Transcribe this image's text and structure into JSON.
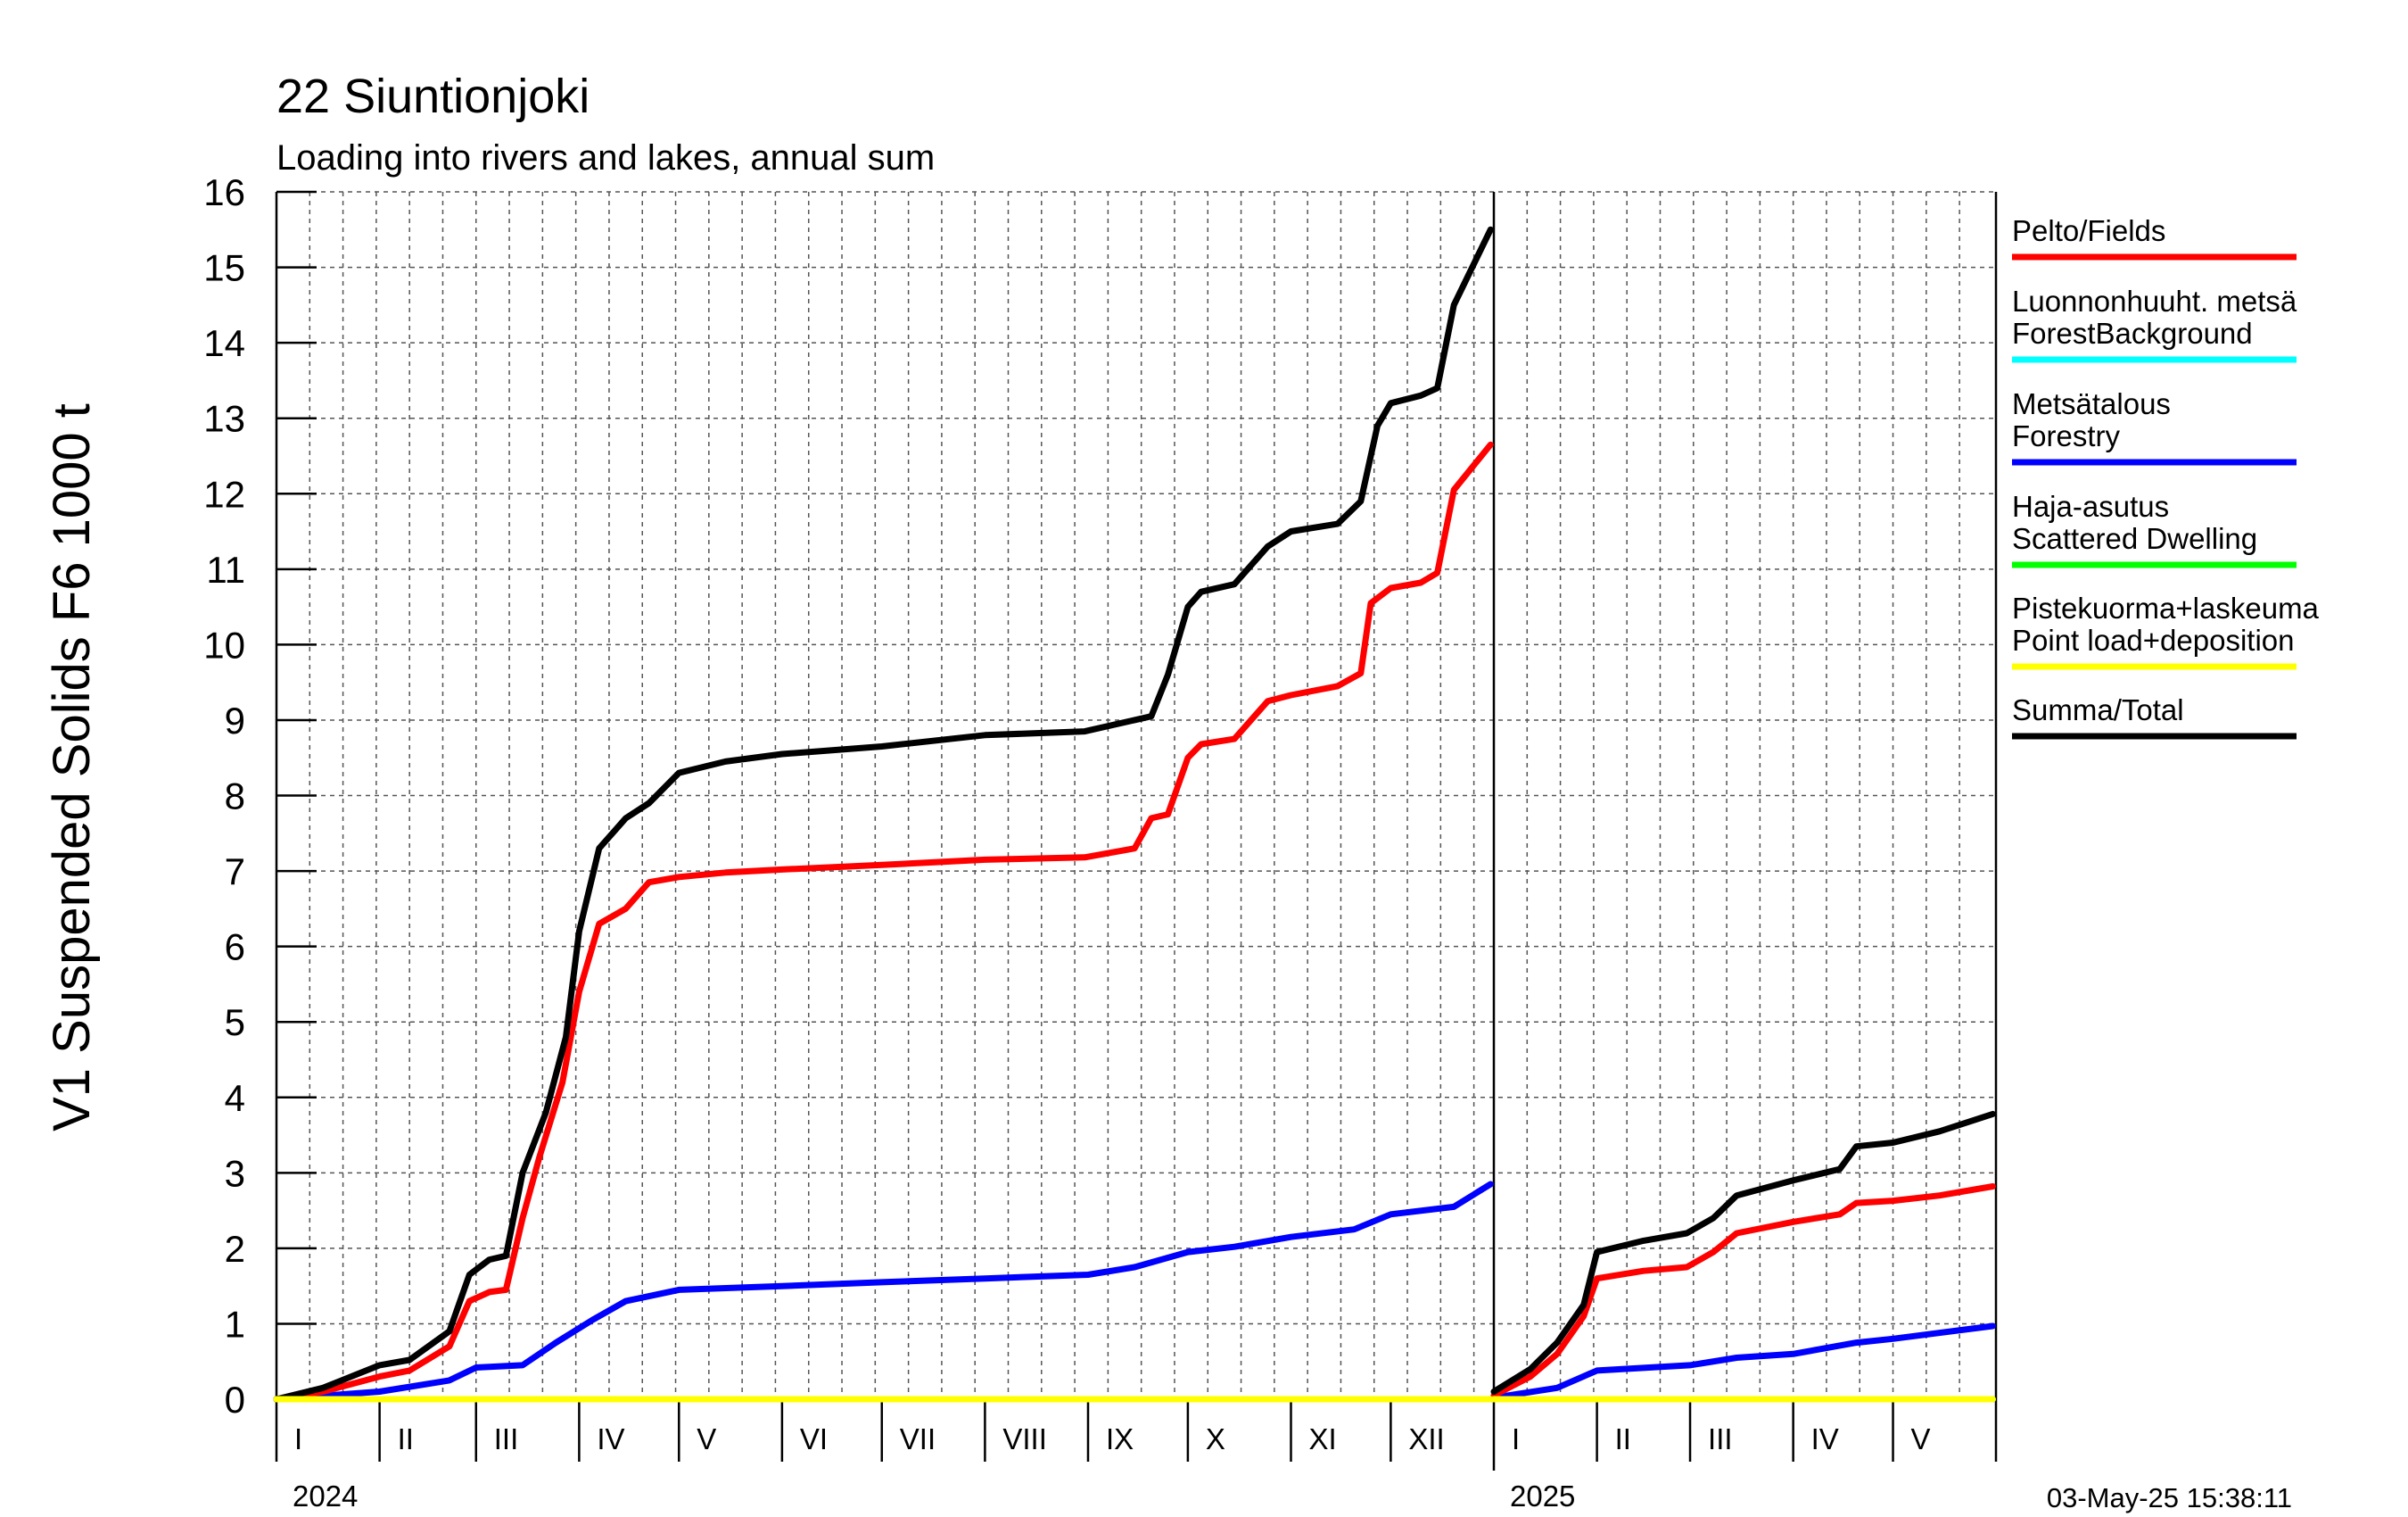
{
  "chart_data": {
    "type": "line",
    "title": "22 Siuntionjoki",
    "subtitle": "Loading into rivers and lakes, annual sum",
    "ylabel": "V1 Suspended Solids F6 1000 t",
    "ylim": [
      0,
      16
    ],
    "yticks": [
      "0",
      "1",
      "2",
      "3",
      "4",
      "5",
      "6",
      "7",
      "8",
      "9",
      "10",
      "11",
      "12",
      "13",
      "14",
      "15",
      "16"
    ],
    "grid": true,
    "legend_position": "right",
    "timestamp": "03-May-25 15:38:11",
    "years": [
      {
        "label": "2024",
        "start": "2024-01-01",
        "end": "2025-01-01"
      },
      {
        "label": "2025",
        "start": "2025-01-01",
        "end": "2025-06-01"
      }
    ],
    "months": [
      {
        "label": "I",
        "start": "2024-01-01"
      },
      {
        "label": "II",
        "start": "2024-02-01"
      },
      {
        "label": "III",
        "start": "2024-03-01"
      },
      {
        "label": "IV",
        "start": "2024-04-01"
      },
      {
        "label": "V",
        "start": "2024-05-01"
      },
      {
        "label": "VI",
        "start": "2024-06-01"
      },
      {
        "label": "VII",
        "start": "2024-07-01"
      },
      {
        "label": "VIII",
        "start": "2024-08-01"
      },
      {
        "label": "IX",
        "start": "2024-09-01"
      },
      {
        "label": "X",
        "start": "2024-10-01"
      },
      {
        "label": "XI",
        "start": "2024-11-01"
      },
      {
        "label": "XII",
        "start": "2024-12-01"
      },
      {
        "label": "I",
        "start": "2025-01-01"
      },
      {
        "label": "II",
        "start": "2025-02-01"
      },
      {
        "label": "III",
        "start": "2025-03-01"
      },
      {
        "label": "IV",
        "start": "2025-04-01"
      },
      {
        "label": "V",
        "start": "2025-05-01"
      }
    ],
    "series": [
      {
        "name": "Pelto/Fields",
        "color": "#ff0000",
        "segments": [
          {
            "x": [
              "2024-01-01",
              "2024-01-15",
              "2024-02-01",
              "2024-02-10",
              "2024-02-22",
              "2024-02-28",
              "2024-03-05",
              "2024-03-10",
              "2024-03-15",
              "2024-03-20",
              "2024-03-27",
              "2024-04-01",
              "2024-04-07",
              "2024-04-15",
              "2024-04-22",
              "2024-05-01",
              "2024-05-15",
              "2024-06-01",
              "2024-07-01",
              "2024-08-01",
              "2024-08-31",
              "2024-09-15",
              "2024-09-20",
              "2024-09-25",
              "2024-10-01",
              "2024-10-05",
              "2024-10-15",
              "2024-10-25",
              "2024-11-01",
              "2024-11-15",
              "2024-11-22",
              "2024-11-25",
              "2024-12-01",
              "2024-12-10",
              "2024-12-15",
              "2024-12-20",
              "2024-12-31"
            ],
            "y": [
              0,
              0.1,
              0.3,
              0.38,
              0.7,
              1.3,
              1.42,
              1.45,
              2.4,
              3.2,
              4.2,
              5.4,
              6.3,
              6.5,
              6.85,
              6.92,
              6.98,
              7.02,
              7.08,
              7.15,
              7.18,
              7.3,
              7.7,
              7.75,
              8.5,
              8.68,
              8.75,
              9.25,
              9.33,
              9.45,
              9.62,
              10.55,
              10.75,
              10.82,
              10.95,
              12.05,
              12.65
            ]
          },
          {
            "x": [
              "2025-01-01",
              "2025-01-12",
              "2025-01-20",
              "2025-01-28",
              "2025-02-01",
              "2025-02-15",
              "2025-02-28",
              "2025-03-08",
              "2025-03-15",
              "2025-04-01",
              "2025-04-15",
              "2025-04-20",
              "2025-05-01",
              "2025-05-15",
              "2025-05-31"
            ],
            "y": [
              0.05,
              0.3,
              0.6,
              1.1,
              1.6,
              1.7,
              1.75,
              1.95,
              2.2,
              2.35,
              2.45,
              2.6,
              2.63,
              2.7,
              2.82
            ]
          }
        ]
      },
      {
        "name": "Luonnonhuuht. metsä\nForestBackground",
        "color": "#00ffff",
        "segments": [
          {
            "x": [
              "2024-01-01",
              "2024-12-31"
            ],
            "y": [
              0,
              0
            ]
          },
          {
            "x": [
              "2025-01-01",
              "2025-05-31"
            ],
            "y": [
              0,
              0
            ]
          }
        ]
      },
      {
        "name": "Metsätalous\nForestry",
        "color": "#0000ff",
        "segments": [
          {
            "x": [
              "2024-01-01",
              "2024-02-01",
              "2024-02-22",
              "2024-03-01",
              "2024-03-15",
              "2024-03-25",
              "2024-04-05",
              "2024-04-15",
              "2024-05-01",
              "2024-06-01",
              "2024-07-01",
              "2024-08-01",
              "2024-09-01",
              "2024-09-15",
              "2024-10-01",
              "2024-10-15",
              "2024-11-01",
              "2024-11-20",
              "2024-12-01",
              "2024-12-20",
              "2024-12-31"
            ],
            "y": [
              0,
              0.1,
              0.25,
              0.42,
              0.45,
              0.75,
              1.05,
              1.3,
              1.45,
              1.5,
              1.55,
              1.6,
              1.65,
              1.75,
              1.95,
              2.02,
              2.15,
              2.25,
              2.45,
              2.55,
              2.85
            ]
          },
          {
            "x": [
              "2025-01-01",
              "2025-01-20",
              "2025-02-01",
              "2025-03-01",
              "2025-03-15",
              "2025-04-01",
              "2025-04-20",
              "2025-05-01",
              "2025-05-31"
            ],
            "y": [
              0.02,
              0.15,
              0.38,
              0.45,
              0.55,
              0.6,
              0.75,
              0.8,
              0.97
            ]
          }
        ]
      },
      {
        "name": "Haja-asutus\nScattered Dwelling",
        "color": "#00ff00",
        "segments": [
          {
            "x": [
              "2024-01-01",
              "2024-12-31"
            ],
            "y": [
              0,
              0
            ]
          },
          {
            "x": [
              "2025-01-01",
              "2025-05-31"
            ],
            "y": [
              0,
              0
            ]
          }
        ]
      },
      {
        "name": "Pistekuorma+laskeuma\nPoint load+deposition",
        "color": "#ffff00",
        "segments": [
          {
            "x": [
              "2024-01-01",
              "2024-12-31"
            ],
            "y": [
              0,
              0
            ]
          },
          {
            "x": [
              "2025-01-01",
              "2025-05-31"
            ],
            "y": [
              0,
              0
            ]
          }
        ]
      },
      {
        "name": "Summa/Total",
        "color": "#000000",
        "segments": [
          {
            "x": [
              "2024-01-01",
              "2024-01-15",
              "2024-02-01",
              "2024-02-10",
              "2024-02-22",
              "2024-02-28",
              "2024-03-05",
              "2024-03-10",
              "2024-03-15",
              "2024-03-22",
              "2024-03-28",
              "2024-04-01",
              "2024-04-07",
              "2024-04-15",
              "2024-04-22",
              "2024-05-01",
              "2024-05-15",
              "2024-06-01",
              "2024-07-01",
              "2024-08-01",
              "2024-08-31",
              "2024-09-15",
              "2024-09-20",
              "2024-09-25",
              "2024-10-01",
              "2024-10-05",
              "2024-10-15",
              "2024-10-25",
              "2024-11-01",
              "2024-11-15",
              "2024-11-22",
              "2024-11-27",
              "2024-12-01",
              "2024-12-10",
              "2024-12-15",
              "2024-12-20",
              "2024-12-31"
            ],
            "y": [
              0,
              0.15,
              0.45,
              0.52,
              0.9,
              1.65,
              1.85,
              1.9,
              3.0,
              3.8,
              4.8,
              6.2,
              7.3,
              7.7,
              7.9,
              8.3,
              8.45,
              8.55,
              8.65,
              8.8,
              8.85,
              9.0,
              9.05,
              9.6,
              10.5,
              10.7,
              10.8,
              11.3,
              11.5,
              11.6,
              11.9,
              12.9,
              13.2,
              13.3,
              13.4,
              14.5,
              15.5
            ]
          },
          {
            "x": [
              "2025-01-01",
              "2025-01-12",
              "2025-01-20",
              "2025-01-28",
              "2025-02-01",
              "2025-02-15",
              "2025-02-28",
              "2025-03-08",
              "2025-03-15",
              "2025-04-01",
              "2025-04-15",
              "2025-04-20",
              "2025-05-01",
              "2025-05-15",
              "2025-05-31"
            ],
            "y": [
              0.1,
              0.4,
              0.75,
              1.25,
              1.95,
              2.1,
              2.2,
              2.4,
              2.7,
              2.9,
              3.05,
              3.35,
              3.4,
              3.55,
              3.78
            ]
          }
        ]
      }
    ]
  }
}
